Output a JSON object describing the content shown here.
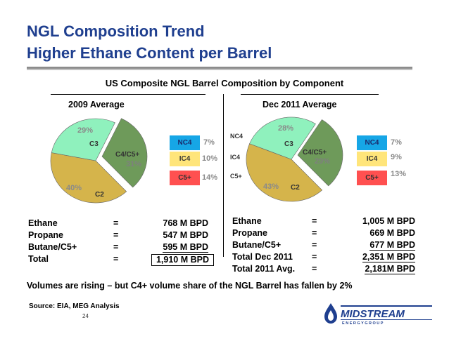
{
  "slide": {
    "title_line1": "NGL Composition Trend",
    "title_line2": "Higher Ethane Content per Barrel",
    "subtitle": "US Composite NGL Barrel Composition by Component",
    "footer_note": "Volumes are rising – but C4+ volume share of the NGL Barrel has fallen by 2%",
    "source": "Source: EIA, MEG Analysis",
    "page_number": "24"
  },
  "colors": {
    "title": "#1f3f8f",
    "c2": "#d5b44b",
    "c3": "#8ff1bd",
    "c4c5": "#6e9a5a",
    "nc4": "#16a6e6",
    "ic4": "#ffe57a",
    "c5plus": "#ff5050"
  },
  "chart_data": [
    {
      "type": "pie",
      "title": "2009 Average",
      "slices": [
        {
          "label": "C2",
          "value": 40,
          "pct_label": "40%"
        },
        {
          "label": "C3",
          "value": 29,
          "pct_label": "29%"
        },
        {
          "label": "C4/C5+",
          "value": 31,
          "pct_label": "31%"
        }
      ],
      "breakdown": [
        {
          "label": "NC4",
          "pct_label": "7%"
        },
        {
          "label": "IC4",
          "pct_label": "10%"
        },
        {
          "label": "C5+",
          "pct_label": "14%"
        }
      ]
    },
    {
      "type": "pie",
      "title": "Dec 2011  Average",
      "slices": [
        {
          "label": "C2",
          "value": 43,
          "pct_label": "43%"
        },
        {
          "label": "C3",
          "value": 28,
          "pct_label": "28%"
        },
        {
          "label": "C4/C5+",
          "value": 29,
          "pct_label": "29%"
        }
      ],
      "breakdown": [
        {
          "label": "NC4",
          "pct_label": "7%"
        },
        {
          "label": "IC4",
          "pct_label": "9%"
        },
        {
          "label": "C5+",
          "pct_label": "13%"
        }
      ],
      "middle_labels": [
        "NC4",
        "IC4",
        "C5+"
      ]
    }
  ],
  "table_2009": {
    "rows": [
      {
        "label": "Ethane",
        "eq": "=",
        "value": "768 M BPD"
      },
      {
        "label": "Propane",
        "eq": "=",
        "value": "547 M BPD"
      },
      {
        "label": "Butane/C5+",
        "eq": "=",
        "value": "595 M BPD"
      },
      {
        "label": "Total",
        "eq": "=",
        "value": "1,910 M BPD"
      }
    ]
  },
  "table_2011": {
    "rows": [
      {
        "label": "Ethane",
        "eq": "=",
        "value": "1,005 M BPD"
      },
      {
        "label": "Propane",
        "eq": "=",
        "value": "669 M BPD"
      },
      {
        "label": "Butane/C5+",
        "eq": "=",
        "value": "677 M BPD"
      },
      {
        "label": "Total Dec 2011",
        "eq": "=",
        "value": "2,351 M BPD"
      },
      {
        "label": "Total 2011 Avg.",
        "eq": "=",
        "value": "2,181M BPD"
      }
    ]
  },
  "logo": {
    "name": "MIDSTREAM",
    "tagline": "E N E R G Y   G R O U P"
  }
}
